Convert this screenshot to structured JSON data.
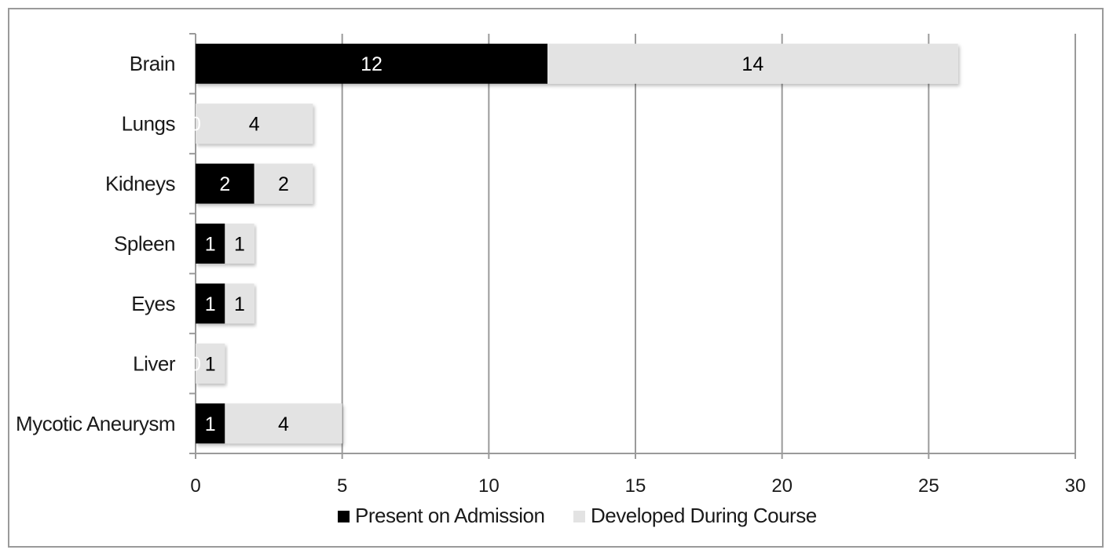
{
  "chart_data": {
    "type": "bar",
    "orientation": "horizontal",
    "stacked": true,
    "categories": [
      "Brain",
      "Lungs",
      "Kidneys",
      "Spleen",
      "Eyes",
      "Liver",
      "Mycotic Aneurysm"
    ],
    "series": [
      {
        "name": "Present on Admission",
        "values": [
          12,
          0,
          2,
          1,
          1,
          0,
          1
        ],
        "color": "#000000",
        "label_color": "#ffffff"
      },
      {
        "name": "Developed During Course",
        "values": [
          14,
          4,
          2,
          1,
          1,
          1,
          4
        ],
        "color": "#e3e3e3",
        "label_color": "#000000"
      }
    ],
    "xlim": [
      0,
      30
    ],
    "xticks": [
      "0",
      "5",
      "10",
      "15",
      "20",
      "25",
      "30"
    ],
    "xlabel": "",
    "ylabel": "",
    "title": "",
    "grid": "vertical gridlines",
    "legend_position": "bottom"
  }
}
